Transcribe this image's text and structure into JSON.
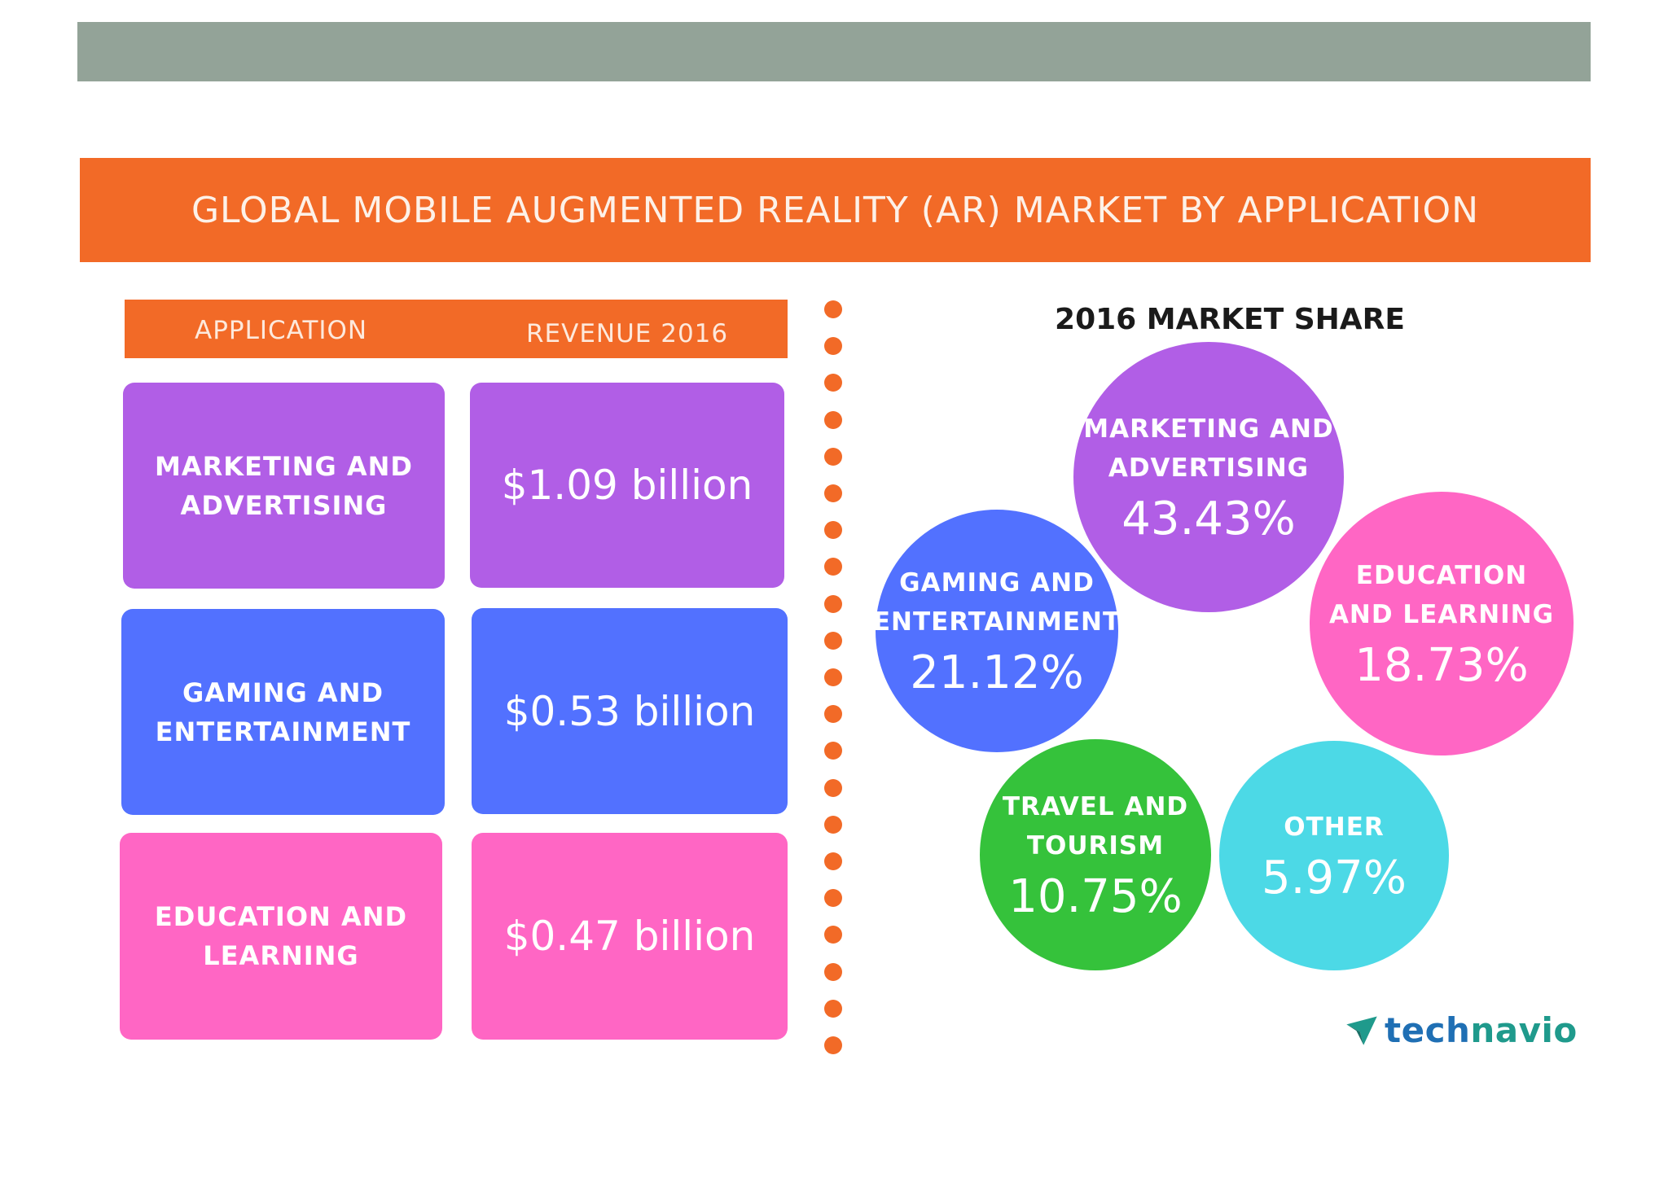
{
  "title": "GLOBAL MOBILE AUGMENTED REALITY (AR) MARKET BY APPLICATION",
  "table": {
    "header_application": "APPLICATION",
    "header_revenue": "REVENUE  2016"
  },
  "share_title": "2016 MARKET SHARE",
  "logo": {
    "part1": "tech",
    "part2": "navio"
  },
  "colors": {
    "orange": "#f26a27",
    "purple": "#b15ee6",
    "blue": "#5271ff",
    "pink": "#ff66c4",
    "green": "#35c23b",
    "cyan": "#4cd9e6"
  },
  "chart_data": [
    {
      "type": "table",
      "title": "",
      "columns": [
        "APPLICATION",
        "REVENUE  2016"
      ],
      "rows": [
        {
          "application_lines": [
            "MARKETING AND",
            "ADVERTISING"
          ],
          "revenue": "$1.09 billion",
          "color": "#b15ee6"
        },
        {
          "application_lines": [
            "GAMING AND",
            "ENTERTAINMENT"
          ],
          "revenue": "$0.53 billion",
          "color": "#5271ff"
        },
        {
          "application_lines": [
            "EDUCATION AND",
            "LEARNING"
          ],
          "revenue": "$0.47 billion",
          "color": "#ff66c4"
        }
      ]
    },
    {
      "type": "pie",
      "title": "2016 MARKET SHARE",
      "slices": [
        {
          "label_lines": [
            "MARKETING AND",
            "ADVERTISING"
          ],
          "value": 43.43,
          "display": "43.43%",
          "color": "#b15ee6"
        },
        {
          "label_lines": [
            "GAMING AND",
            "ENTERTAINMENT"
          ],
          "value": 21.12,
          "display": "21.12%",
          "color": "#5271ff"
        },
        {
          "label_lines": [
            "EDUCATION",
            "AND LEARNING"
          ],
          "value": 18.73,
          "display": "18.73%",
          "color": "#ff66c4"
        },
        {
          "label_lines": [
            "TRAVEL AND",
            "TOURISM"
          ],
          "value": 10.75,
          "display": "10.75%",
          "color": "#35c23b"
        },
        {
          "label_lines": [
            "OTHER"
          ],
          "value": 5.97,
          "display": "5.97%",
          "color": "#4cd9e6"
        }
      ]
    }
  ]
}
